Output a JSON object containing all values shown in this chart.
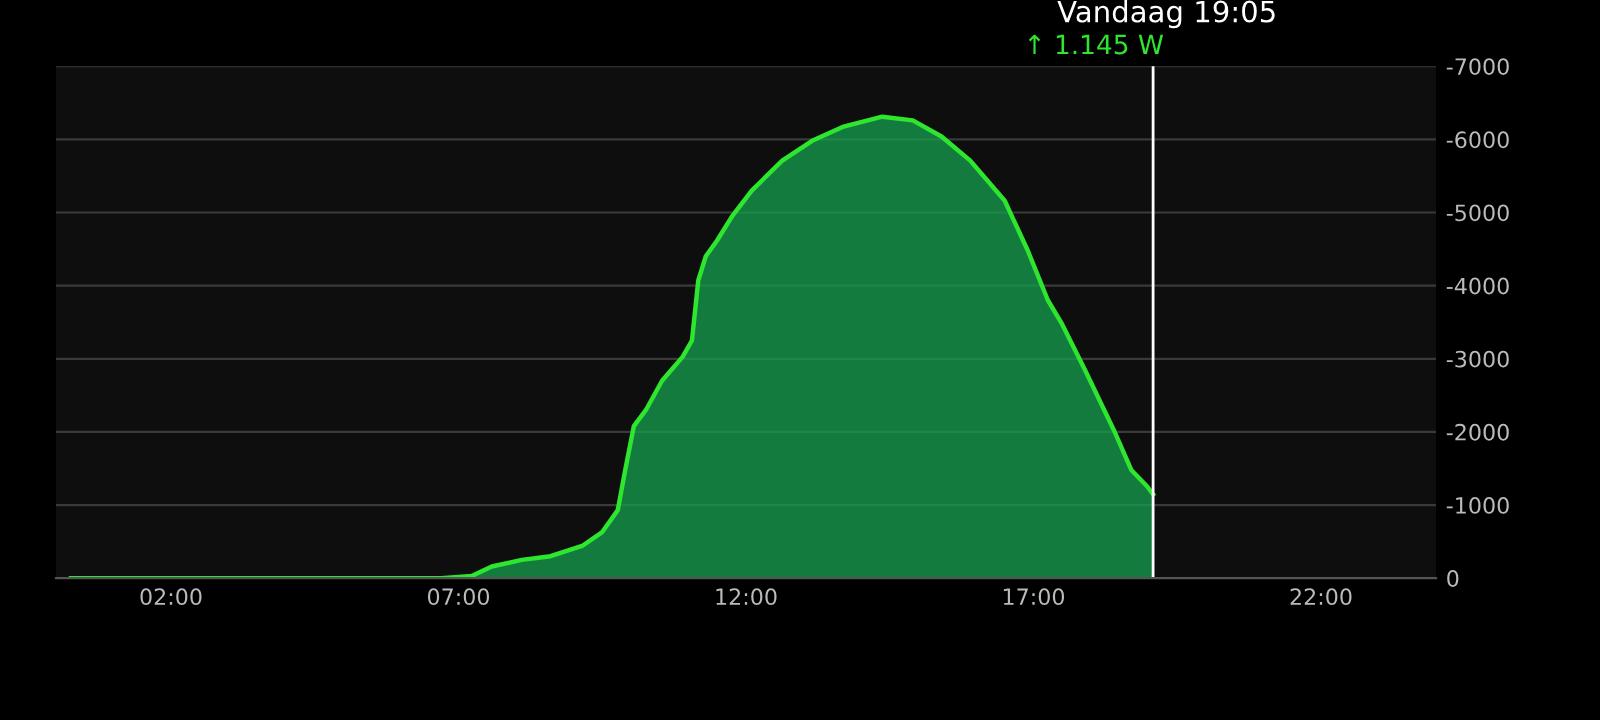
{
  "chart_data": {
    "type": "area",
    "annotations": [
      "Vandaag 19:05",
      "↑ 1.145 W"
    ],
    "x": [
      0.26,
      6.7,
      7.23,
      7.58,
      8.1,
      8.6,
      9.15,
      9.5,
      9.77,
      9.9,
      10.05,
      10.26,
      10.54,
      10.9,
      11.06,
      11.17,
      11.3,
      11.5,
      11.76,
      12.1,
      12.63,
      13.15,
      13.68,
      14.37,
      14.9,
      15.4,
      15.9,
      16.5,
      16.9,
      17.25,
      17.5,
      17.9,
      18.4,
      18.7,
      18.97,
      19.08
    ],
    "series": [
      {
        "color": "#2ee62e",
        "values": [
          0,
          0,
          -30,
          -160,
          -250,
          -300,
          -440,
          -630,
          -930,
          -1480,
          -2080,
          -2300,
          -2700,
          -3030,
          -3250,
          -4070,
          -4400,
          -4620,
          -4950,
          -5300,
          -5710,
          -5980,
          -6170,
          -6310,
          -6260,
          -6040,
          -5710,
          -5160,
          -4480,
          -3800,
          -3470,
          -2840,
          -2020,
          -1480,
          -1260,
          -1145
        ]
      }
    ],
    "xlim": [
      0,
      24
    ],
    "xticks": [
      {
        "value": 2,
        "label": "02:00"
      },
      {
        "value": 7,
        "label": "07:00"
      },
      {
        "value": 12,
        "label": "12:00"
      },
      {
        "value": 17,
        "label": "17:00"
      },
      {
        "value": 22,
        "label": "22:00"
      }
    ],
    "ylim": [
      0,
      -7000
    ],
    "yticks": [
      0,
      -1000,
      -2000,
      -3000,
      -4000,
      -5000,
      -6000,
      -7000
    ],
    "ref_lines": [
      {
        "axis": "x",
        "value": 19.08,
        "color": "#ffffff"
      }
    ],
    "grid": "y",
    "legend": false,
    "marker": "none",
    "line_style": "solid"
  }
}
